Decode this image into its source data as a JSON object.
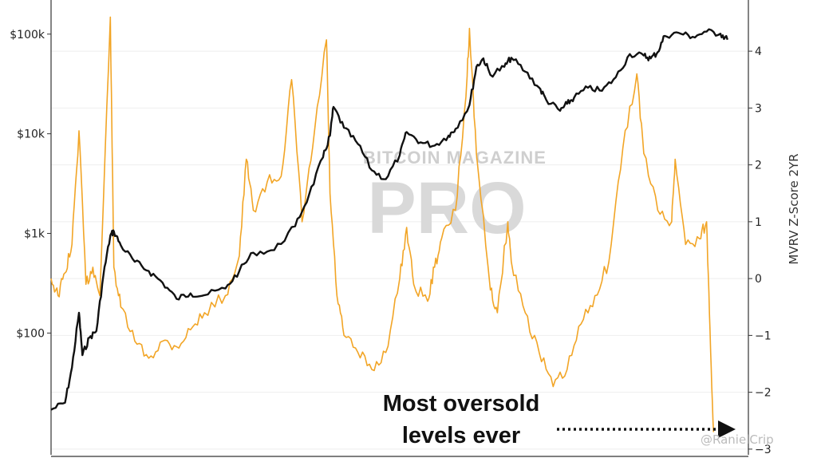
{
  "chart_data": {
    "type": "line",
    "y_left": {
      "scale": "log",
      "ticks": [
        {
          "value": 100,
          "label": "$100"
        },
        {
          "value": 1000,
          "label": "$1k"
        },
        {
          "value": 10000,
          "label": "$10k"
        },
        {
          "value": 100000,
          "label": "$100k"
        }
      ],
      "range": [
        6,
        220000
      ]
    },
    "y_right": {
      "label": "MVRV Z-Score 2YR",
      "ticks": [
        -3,
        -2,
        -1,
        0,
        1,
        2,
        3,
        4
      ],
      "range": [
        -3.1,
        4.9
      ]
    },
    "grid": true,
    "series": [
      {
        "axis": "left",
        "color": "#111111",
        "points": [
          [
            0.0,
            17
          ],
          [
            0.02,
            20
          ],
          [
            0.03,
            45
          ],
          [
            0.04,
            160
          ],
          [
            0.045,
            60
          ],
          [
            0.055,
            90
          ],
          [
            0.065,
            105
          ],
          [
            0.075,
            380
          ],
          [
            0.085,
            950
          ],
          [
            0.09,
            1050
          ],
          [
            0.1,
            760
          ],
          [
            0.12,
            520
          ],
          [
            0.14,
            420
          ],
          [
            0.16,
            320
          ],
          [
            0.18,
            220
          ],
          [
            0.2,
            250
          ],
          [
            0.22,
            240
          ],
          [
            0.25,
            280
          ],
          [
            0.27,
            420
          ],
          [
            0.29,
            640
          ],
          [
            0.32,
            680
          ],
          [
            0.35,
            1180
          ],
          [
            0.37,
            2450
          ],
          [
            0.39,
            5800
          ],
          [
            0.4,
            9600
          ],
          [
            0.405,
            18600
          ],
          [
            0.42,
            11500
          ],
          [
            0.44,
            7900
          ],
          [
            0.46,
            4300
          ],
          [
            0.48,
            3500
          ],
          [
            0.5,
            6100
          ],
          [
            0.51,
            10400
          ],
          [
            0.53,
            8200
          ],
          [
            0.55,
            7600
          ],
          [
            0.57,
            9600
          ],
          [
            0.58,
            11200
          ],
          [
            0.6,
            19400
          ],
          [
            0.61,
            47000
          ],
          [
            0.62,
            57000
          ],
          [
            0.63,
            39000
          ],
          [
            0.65,
            47000
          ],
          [
            0.66,
            58000
          ],
          [
            0.68,
            42000
          ],
          [
            0.7,
            29000
          ],
          [
            0.71,
            22000
          ],
          [
            0.73,
            17000
          ],
          [
            0.74,
            20000
          ],
          [
            0.75,
            23000
          ],
          [
            0.77,
            29000
          ],
          [
            0.79,
            27000
          ],
          [
            0.81,
            37000
          ],
          [
            0.83,
            63000
          ],
          [
            0.85,
            61000
          ],
          [
            0.86,
            57000
          ],
          [
            0.87,
            66000
          ],
          [
            0.88,
            96000
          ],
          [
            0.9,
            103000
          ],
          [
            0.92,
            94000
          ],
          [
            0.94,
            106000
          ],
          [
            0.96,
            101000
          ],
          [
            0.97,
            88000
          ]
        ]
      },
      {
        "axis": "right",
        "color": "#f2a526",
        "points": [
          [
            0.0,
            0.0
          ],
          [
            0.01,
            -0.3
          ],
          [
            0.02,
            0.1
          ],
          [
            0.03,
            0.6
          ],
          [
            0.04,
            2.6
          ],
          [
            0.05,
            -0.1
          ],
          [
            0.06,
            0.2
          ],
          [
            0.07,
            -0.3
          ],
          [
            0.085,
            4.6
          ],
          [
            0.09,
            0.2
          ],
          [
            0.1,
            -0.5
          ],
          [
            0.12,
            -1.1
          ],
          [
            0.14,
            -1.4
          ],
          [
            0.16,
            -1.1
          ],
          [
            0.18,
            -1.2
          ],
          [
            0.2,
            -0.9
          ],
          [
            0.22,
            -0.6
          ],
          [
            0.25,
            -0.3
          ],
          [
            0.27,
            0.4
          ],
          [
            0.28,
            2.1
          ],
          [
            0.29,
            1.2
          ],
          [
            0.31,
            1.7
          ],
          [
            0.33,
            1.8
          ],
          [
            0.345,
            3.5
          ],
          [
            0.36,
            1.0
          ],
          [
            0.375,
            2.3
          ],
          [
            0.395,
            4.2
          ],
          [
            0.4,
            1.5
          ],
          [
            0.41,
            -0.3
          ],
          [
            0.42,
            -1.0
          ],
          [
            0.44,
            -1.3
          ],
          [
            0.46,
            -1.6
          ],
          [
            0.48,
            -1.3
          ],
          [
            0.5,
            0.0
          ],
          [
            0.51,
            0.9
          ],
          [
            0.52,
            -0.1
          ],
          [
            0.54,
            -0.4
          ],
          [
            0.55,
            0.2
          ],
          [
            0.56,
            0.7
          ],
          [
            0.58,
            1.2
          ],
          [
            0.595,
            3.2
          ],
          [
            0.6,
            4.4
          ],
          [
            0.61,
            2.2
          ],
          [
            0.63,
            -0.2
          ],
          [
            0.64,
            -0.6
          ],
          [
            0.655,
            1.0
          ],
          [
            0.66,
            0.3
          ],
          [
            0.68,
            -0.6
          ],
          [
            0.7,
            -1.3
          ],
          [
            0.72,
            -1.9
          ],
          [
            0.74,
            -1.6
          ],
          [
            0.76,
            -0.8
          ],
          [
            0.78,
            -0.3
          ],
          [
            0.8,
            0.3
          ],
          [
            0.82,
            2.3
          ],
          [
            0.84,
            3.6
          ],
          [
            0.85,
            2.2
          ],
          [
            0.87,
            1.2
          ],
          [
            0.89,
            1.0
          ],
          [
            0.895,
            2.1
          ],
          [
            0.91,
            0.6
          ],
          [
            0.93,
            0.7
          ],
          [
            0.94,
            1.0
          ],
          [
            0.945,
            -0.9
          ],
          [
            0.95,
            -2.7
          ]
        ]
      }
    ],
    "annotation": [
      "Most oversold",
      "levels ever"
    ],
    "watermark": [
      "BITCOIN MAGAZINE",
      "PRO"
    ],
    "credit": "@RanielCrip"
  }
}
